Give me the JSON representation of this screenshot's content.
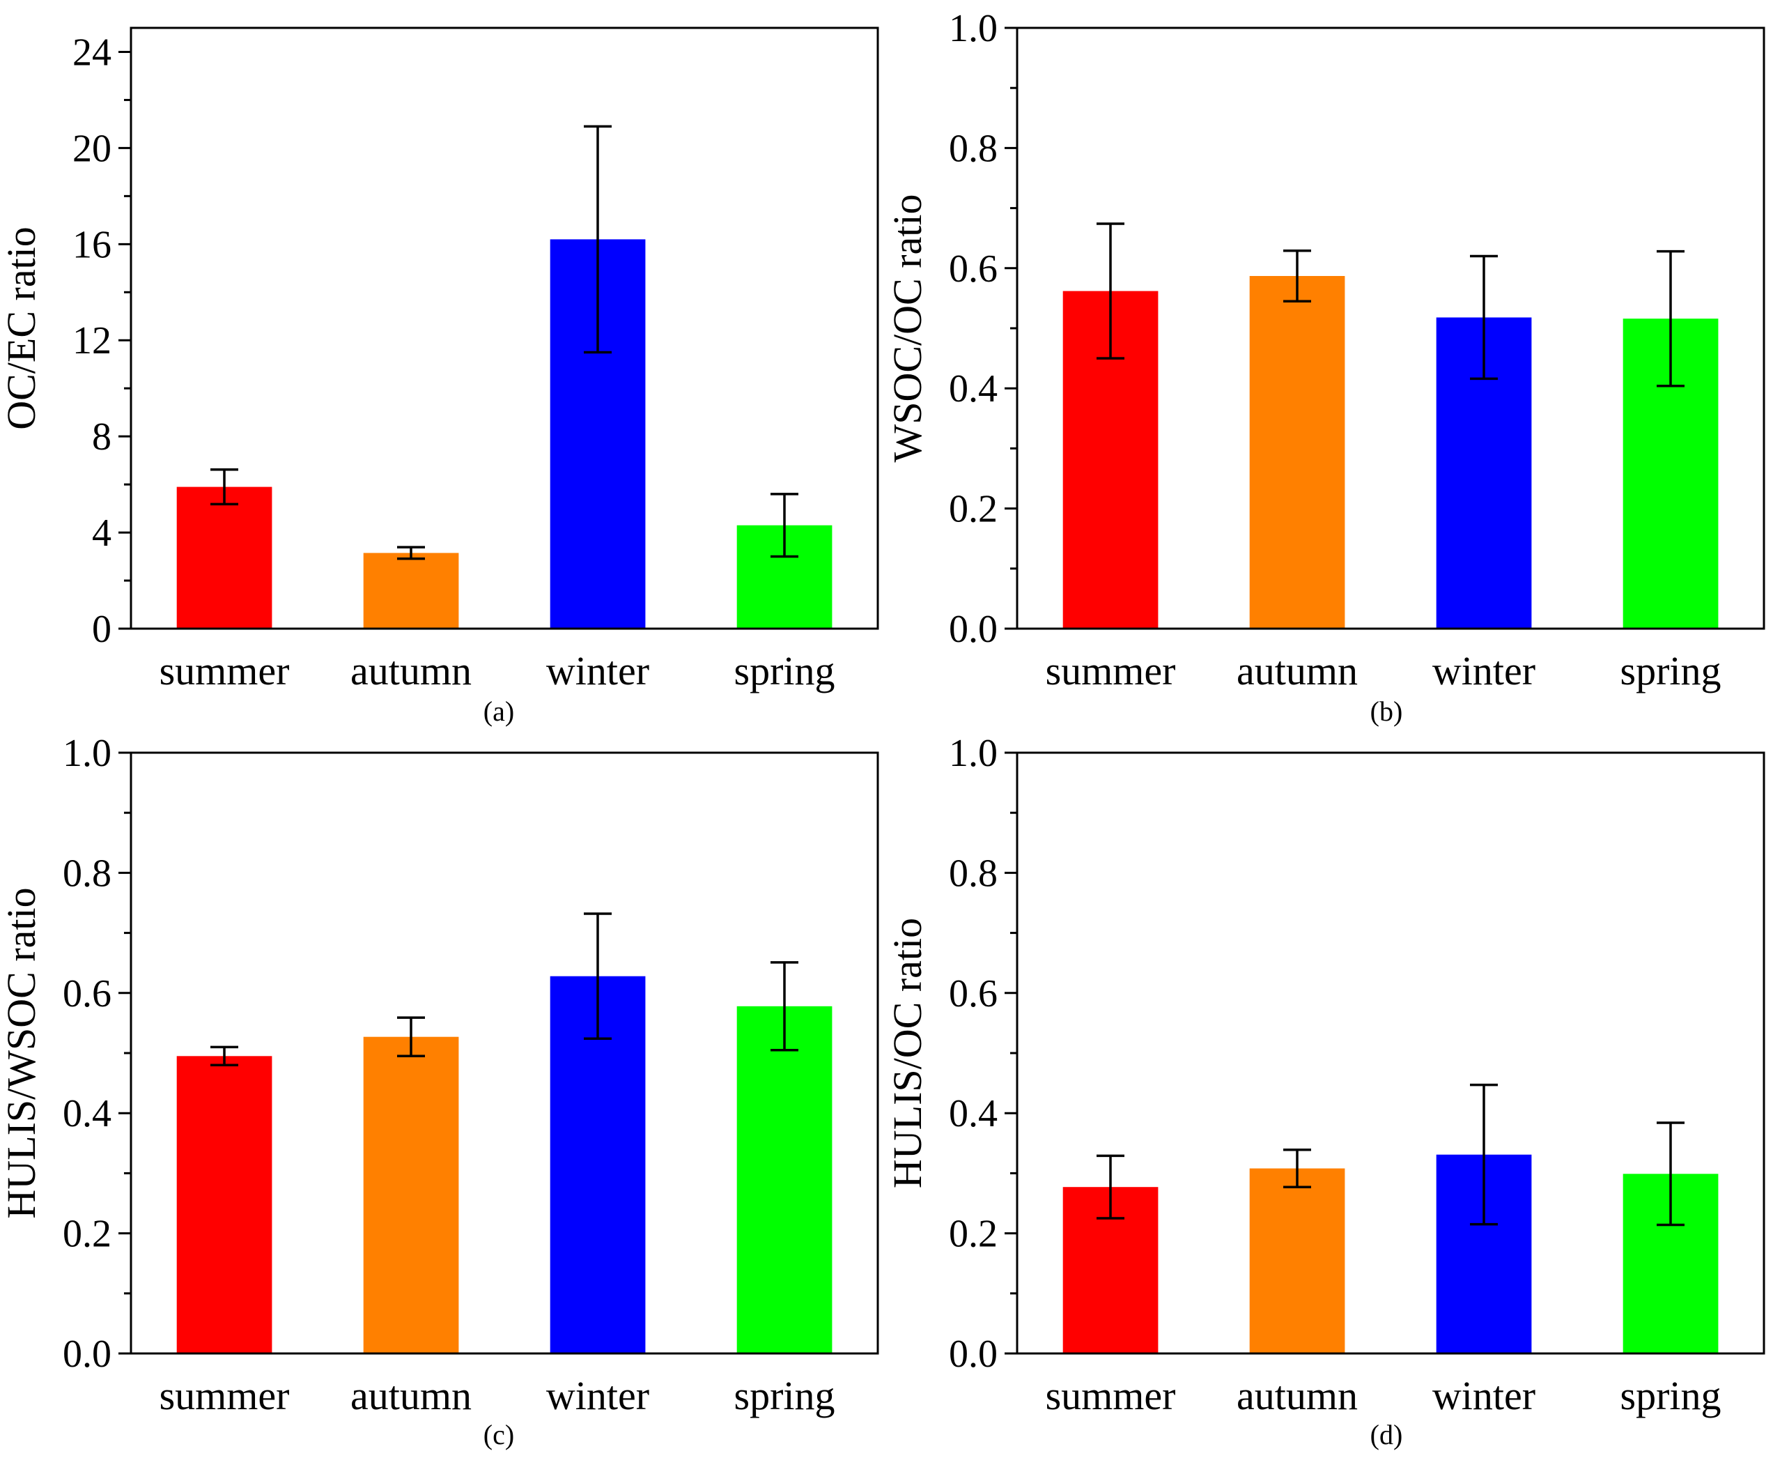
{
  "chart_data": [
    {
      "type": "bar",
      "panel": "(a)",
      "categories": [
        "summer",
        "autumn",
        "winter",
        "spring"
      ],
      "values": [
        5.9,
        3.15,
        16.2,
        4.3
      ],
      "errors": [
        0.72,
        0.24,
        4.7,
        1.3
      ],
      "colors": [
        "#ff0000",
        "#ff8000",
        "#0000ff",
        "#00ff00"
      ],
      "xlabel": "",
      "ylabel": "OC/EC ratio",
      "ylim": [
        0,
        25
      ],
      "yticks": [
        "0",
        "4",
        "8",
        "12",
        "16",
        "20",
        "24"
      ],
      "ytick_values": [
        0,
        4,
        8,
        12,
        16,
        20,
        24
      ],
      "minor_step": 2
    },
    {
      "type": "bar",
      "panel": "(b)",
      "categories": [
        "summer",
        "autumn",
        "winter",
        "spring"
      ],
      "values": [
        0.562,
        0.587,
        0.518,
        0.516
      ],
      "errors": [
        0.112,
        0.042,
        0.102,
        0.112
      ],
      "colors": [
        "#ff0000",
        "#ff8000",
        "#0000ff",
        "#00ff00"
      ],
      "xlabel": "",
      "ylabel": "WSOC/OC ratio",
      "ylim": [
        0,
        1.0
      ],
      "yticks": [
        "0.0",
        "0.2",
        "0.4",
        "0.6",
        "0.8",
        "1.0"
      ],
      "ytick_values": [
        0,
        0.2,
        0.4,
        0.6,
        0.8,
        1.0
      ],
      "minor_step": 0.1
    },
    {
      "type": "bar",
      "panel": "(c)",
      "categories": [
        "summer",
        "autumn",
        "winter",
        "spring"
      ],
      "values": [
        0.495,
        0.527,
        0.628,
        0.578
      ],
      "errors": [
        0.015,
        0.032,
        0.104,
        0.073
      ],
      "colors": [
        "#ff0000",
        "#ff8000",
        "#0000ff",
        "#00ff00"
      ],
      "xlabel": "",
      "ylabel": "HULIS/WSOC ratio",
      "ylim": [
        0,
        1.0
      ],
      "yticks": [
        "0.0",
        "0.2",
        "0.4",
        "0.6",
        "0.8",
        "1.0"
      ],
      "ytick_values": [
        0,
        0.2,
        0.4,
        0.6,
        0.8,
        1.0
      ],
      "minor_step": 0.1
    },
    {
      "type": "bar",
      "panel": "(d)",
      "categories": [
        "summer",
        "autumn",
        "winter",
        "spring"
      ],
      "values": [
        0.277,
        0.308,
        0.331,
        0.299
      ],
      "errors": [
        0.052,
        0.031,
        0.116,
        0.085
      ],
      "colors": [
        "#ff0000",
        "#ff8000",
        "#0000ff",
        "#00ff00"
      ],
      "xlabel": "",
      "ylabel": "HULIS/OC ratio",
      "ylim": [
        0,
        1.0
      ],
      "yticks": [
        "0.0",
        "0.2",
        "0.4",
        "0.6",
        "0.8",
        "1.0"
      ],
      "ytick_values": [
        0,
        0.2,
        0.4,
        0.6,
        0.8,
        1.0
      ],
      "minor_step": 0.1
    }
  ]
}
